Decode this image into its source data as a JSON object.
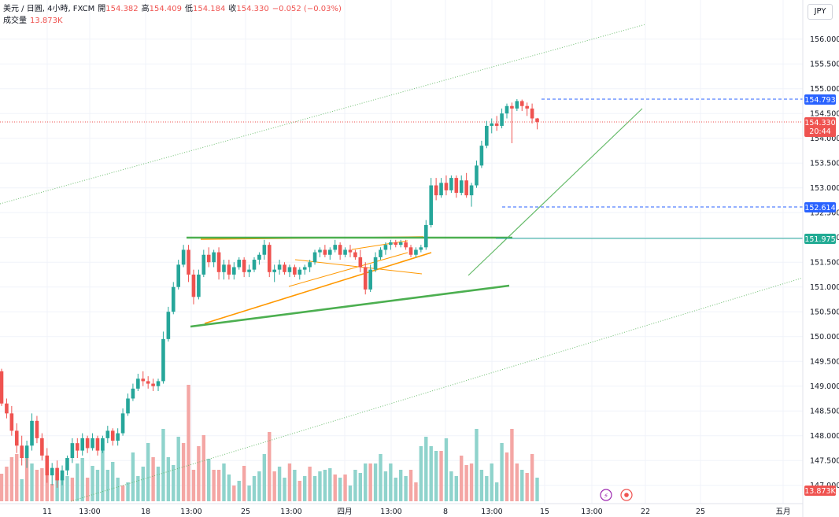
{
  "header": {
    "symbol": "美元 / 日圓, 4小時, FXCM",
    "open_label": "開",
    "open": "154.382",
    "high_label": "高",
    "high": "154.409",
    "low_label": "低",
    "low": "154.184",
    "close_label": "收",
    "close": "154.330",
    "change": "−0.052 (−0.03%)",
    "volume_label": "成交量",
    "volume": "13.873K"
  },
  "currency_button": "JPY",
  "colors": {
    "up": "#26a69a",
    "down": "#ef5350",
    "vol_up": "#8fd3cc",
    "vol_down": "#f4a6a4",
    "trend_green": "#4caf50",
    "triangle_orange": "#ff9800",
    "dash_blue": "#2962ff"
  },
  "chart_data": {
    "type": "candlestick",
    "price_axis": {
      "ticks": [
        "156.000",
        "155.500",
        "155.000",
        "154.500",
        "154.000",
        "153.500",
        "153.000",
        "152.500",
        "152.000",
        "151.500",
        "151.000",
        "150.500",
        "150.000",
        "149.500",
        "149.000",
        "148.500",
        "148.000",
        "147.500",
        "147.000"
      ],
      "range": [
        146.9,
        156.4
      ]
    },
    "time_axis": {
      "ticks": [
        "11",
        "13:00",
        "18",
        "13:00",
        "25",
        "13:00",
        "四月",
        "13:00",
        "8",
        "13:00",
        "15",
        "13:00",
        "22",
        "25",
        "五月"
      ]
    },
    "price_labels": {
      "high_line": "154.793",
      "last_price": "154.330",
      "countdown": "20:44",
      "low_line": "152.614",
      "horizontal_line": "151.975",
      "volume": "13.873K"
    },
    "candles": [
      [
        149.3,
        149.35,
        148.6,
        148.65
      ],
      [
        148.65,
        148.75,
        148.35,
        148.45
      ],
      [
        148.45,
        148.6,
        148.0,
        148.1
      ],
      [
        148.1,
        148.25,
        147.65,
        147.8
      ],
      [
        147.8,
        148.0,
        147.4,
        147.55
      ],
      [
        147.55,
        147.9,
        147.35,
        147.8
      ],
      [
        147.8,
        148.45,
        147.7,
        148.3
      ],
      [
        148.3,
        148.4,
        147.85,
        147.95
      ],
      [
        147.95,
        148.05,
        147.5,
        147.6
      ],
      [
        147.6,
        147.75,
        147.05,
        147.2
      ],
      [
        147.2,
        147.45,
        147.0,
        147.35
      ],
      [
        147.35,
        147.5,
        146.95,
        147.1
      ],
      [
        147.1,
        147.4,
        147.0,
        147.3
      ],
      [
        147.3,
        147.6,
        147.2,
        147.55
      ],
      [
        147.55,
        147.95,
        147.45,
        147.85
      ],
      [
        147.85,
        147.95,
        147.55,
        147.7
      ],
      [
        147.7,
        148.05,
        147.6,
        147.95
      ],
      [
        147.95,
        148.0,
        147.65,
        147.75
      ],
      [
        147.75,
        148.05,
        147.7,
        147.95
      ],
      [
        147.95,
        148.0,
        147.6,
        147.7
      ],
      [
        147.7,
        148.0,
        147.65,
        147.95
      ],
      [
        147.95,
        148.2,
        147.85,
        148.1
      ],
      [
        148.1,
        148.15,
        147.8,
        147.9
      ],
      [
        147.9,
        148.15,
        147.8,
        148.05
      ],
      [
        148.05,
        148.55,
        148.0,
        148.45
      ],
      [
        148.45,
        148.85,
        148.4,
        148.75
      ],
      [
        148.75,
        149.05,
        148.7,
        148.95
      ],
      [
        148.95,
        149.25,
        148.9,
        149.15
      ],
      [
        149.15,
        149.3,
        149.0,
        149.1
      ],
      [
        149.1,
        149.2,
        148.95,
        149.05
      ],
      [
        149.05,
        149.15,
        148.9,
        149.0
      ],
      [
        149.0,
        149.15,
        148.9,
        149.1
      ],
      [
        149.1,
        150.1,
        149.05,
        149.95
      ],
      [
        149.95,
        150.6,
        149.9,
        150.5
      ],
      [
        150.5,
        151.1,
        150.45,
        151.0
      ],
      [
        151.0,
        151.55,
        150.95,
        151.45
      ],
      [
        151.45,
        151.85,
        151.4,
        151.75
      ],
      [
        151.75,
        151.85,
        151.1,
        151.25
      ],
      [
        151.25,
        151.35,
        150.65,
        150.8
      ],
      [
        150.8,
        151.35,
        150.75,
        151.25
      ],
      [
        151.25,
        151.75,
        151.2,
        151.65
      ],
      [
        151.65,
        151.8,
        151.4,
        151.5
      ],
      [
        151.5,
        151.75,
        151.4,
        151.7
      ],
      [
        151.7,
        151.8,
        151.15,
        151.3
      ],
      [
        151.3,
        151.55,
        151.15,
        151.45
      ],
      [
        151.45,
        151.55,
        151.15,
        151.25
      ],
      [
        151.25,
        151.5,
        151.15,
        151.4
      ],
      [
        151.4,
        151.6,
        151.35,
        151.55
      ],
      [
        151.55,
        151.6,
        151.2,
        151.3
      ],
      [
        151.3,
        151.45,
        151.2,
        151.35
      ],
      [
        151.35,
        151.6,
        151.3,
        151.55
      ],
      [
        151.55,
        151.7,
        151.45,
        151.65
      ],
      [
        151.65,
        151.95,
        151.55,
        151.85
      ],
      [
        151.85,
        151.9,
        151.2,
        151.3
      ],
      [
        151.3,
        151.45,
        151.1,
        151.35
      ],
      [
        151.35,
        151.55,
        151.25,
        151.45
      ],
      [
        151.45,
        151.5,
        151.25,
        151.3
      ],
      [
        151.3,
        151.45,
        151.2,
        151.4
      ],
      [
        151.4,
        151.45,
        151.2,
        151.25
      ],
      [
        151.25,
        151.4,
        151.15,
        151.35
      ],
      [
        151.35,
        151.45,
        151.25,
        151.4
      ],
      [
        151.4,
        151.55,
        151.3,
        151.5
      ],
      [
        151.5,
        151.75,
        151.45,
        151.7
      ],
      [
        151.7,
        151.8,
        151.6,
        151.75
      ],
      [
        151.75,
        151.85,
        151.6,
        151.65
      ],
      [
        151.65,
        151.8,
        151.55,
        151.75
      ],
      [
        151.75,
        151.95,
        151.7,
        151.85
      ],
      [
        151.85,
        151.9,
        151.55,
        151.65
      ],
      [
        151.65,
        151.8,
        151.6,
        151.75
      ],
      [
        151.75,
        151.85,
        151.6,
        151.7
      ],
      [
        151.7,
        151.75,
        151.55,
        151.6
      ],
      [
        151.6,
        151.75,
        151.3,
        151.4
      ],
      [
        151.4,
        151.5,
        150.85,
        150.95
      ],
      [
        150.95,
        151.45,
        150.9,
        151.35
      ],
      [
        151.35,
        151.7,
        151.3,
        151.6
      ],
      [
        151.6,
        151.8,
        151.55,
        151.75
      ],
      [
        151.75,
        151.9,
        151.65,
        151.85
      ],
      [
        151.85,
        151.95,
        151.75,
        151.9
      ],
      [
        151.9,
        151.95,
        151.8,
        151.85
      ],
      [
        151.85,
        151.95,
        151.8,
        151.9
      ],
      [
        151.9,
        151.95,
        151.75,
        151.8
      ],
      [
        151.8,
        151.85,
        151.6,
        151.65
      ],
      [
        151.65,
        151.8,
        151.6,
        151.75
      ],
      [
        151.75,
        151.85,
        151.7,
        151.8
      ],
      [
        151.8,
        152.35,
        151.75,
        152.25
      ],
      [
        152.25,
        153.2,
        152.2,
        153.05
      ],
      [
        153.05,
        153.2,
        152.75,
        152.85
      ],
      [
        152.85,
        153.2,
        152.8,
        153.1
      ],
      [
        153.1,
        153.25,
        152.85,
        152.95
      ],
      [
        152.95,
        153.25,
        152.9,
        153.2
      ],
      [
        153.2,
        153.25,
        152.8,
        152.9
      ],
      [
        152.9,
        153.25,
        152.85,
        153.15
      ],
      [
        153.15,
        153.3,
        152.8,
        152.85
      ],
      [
        152.85,
        153.1,
        152.62,
        153.05
      ],
      [
        153.05,
        153.55,
        153.0,
        153.45
      ],
      [
        153.45,
        153.95,
        153.4,
        153.85
      ],
      [
        153.85,
        154.35,
        153.8,
        154.25
      ],
      [
        154.25,
        154.4,
        154.1,
        154.3
      ],
      [
        154.3,
        154.45,
        154.15,
        154.25
      ],
      [
        154.25,
        154.6,
        154.2,
        154.5
      ],
      [
        154.5,
        154.7,
        154.4,
        154.65
      ],
      [
        154.65,
        154.72,
        153.9,
        154.6
      ],
      [
        154.6,
        154.79,
        154.55,
        154.75
      ],
      [
        154.75,
        154.78,
        154.55,
        154.65
      ],
      [
        154.65,
        154.72,
        154.45,
        154.6
      ],
      [
        154.6,
        154.7,
        154.3,
        154.4
      ],
      [
        154.4,
        154.41,
        154.18,
        154.33
      ]
    ],
    "volume": [
      [
        35,
        0
      ],
      [
        44,
        0
      ],
      [
        56,
        0
      ],
      [
        60,
        0
      ],
      [
        28,
        1
      ],
      [
        68,
        0
      ],
      [
        48,
        1
      ],
      [
        40,
        0
      ],
      [
        42,
        0
      ],
      [
        56,
        0
      ],
      [
        22,
        0
      ],
      [
        36,
        1
      ],
      [
        32,
        1
      ],
      [
        32,
        1
      ],
      [
        30,
        0
      ],
      [
        48,
        1
      ],
      [
        55,
        1
      ],
      [
        30,
        0
      ],
      [
        45,
        1
      ],
      [
        40,
        1
      ],
      [
        72,
        1
      ],
      [
        40,
        1
      ],
      [
        50,
        1
      ],
      [
        30,
        1
      ],
      [
        20,
        0
      ],
      [
        24,
        1
      ],
      [
        62,
        1
      ],
      [
        32,
        1
      ],
      [
        44,
        1
      ],
      [
        74,
        1
      ],
      [
        56,
        0
      ],
      [
        44,
        1
      ],
      [
        92,
        1
      ],
      [
        56,
        1
      ],
      [
        46,
        1
      ],
      [
        82,
        1
      ],
      [
        74,
        0
      ],
      [
        148,
        0
      ],
      [
        40,
        0
      ],
      [
        70,
        0
      ],
      [
        84,
        0
      ],
      [
        54,
        1
      ],
      [
        40,
        0
      ],
      [
        40,
        0
      ],
      [
        48,
        1
      ],
      [
        34,
        1
      ],
      [
        20,
        0
      ],
      [
        26,
        1
      ],
      [
        45,
        0
      ],
      [
        20,
        1
      ],
      [
        32,
        1
      ],
      [
        38,
        1
      ],
      [
        60,
        1
      ],
      [
        88,
        0
      ],
      [
        38,
        0
      ],
      [
        44,
        1
      ],
      [
        30,
        1
      ],
      [
        48,
        0
      ],
      [
        40,
        1
      ],
      [
        26,
        0
      ],
      [
        32,
        1
      ],
      [
        44,
        0
      ],
      [
        32,
        1
      ],
      [
        38,
        1
      ],
      [
        40,
        1
      ],
      [
        42,
        1
      ],
      [
        34,
        0
      ],
      [
        30,
        1
      ],
      [
        34,
        0
      ],
      [
        20,
        1
      ],
      [
        40,
        1
      ],
      [
        36,
        1
      ],
      [
        48,
        1
      ],
      [
        48,
        0
      ],
      [
        48,
        1
      ],
      [
        60,
        1
      ],
      [
        38,
        1
      ],
      [
        48,
        1
      ],
      [
        30,
        1
      ],
      [
        40,
        1
      ],
      [
        32,
        1
      ],
      [
        40,
        0
      ],
      [
        24,
        0
      ],
      [
        70,
        1
      ],
      [
        82,
        1
      ],
      [
        70,
        1
      ],
      [
        64,
        1
      ],
      [
        64,
        0
      ],
      [
        80,
        1
      ],
      [
        38,
        1
      ],
      [
        32,
        1
      ],
      [
        58,
        0
      ],
      [
        46,
        0
      ],
      [
        48,
        0
      ],
      [
        92,
        1
      ],
      [
        40,
        1
      ],
      [
        32,
        1
      ],
      [
        48,
        1
      ],
      [
        24,
        1
      ],
      [
        74,
        1
      ],
      [
        62,
        0
      ],
      [
        92,
        0
      ],
      [
        48,
        0
      ],
      [
        40,
        1
      ],
      [
        36,
        0
      ],
      [
        60,
        0
      ],
      [
        30,
        1
      ]
    ],
    "overlays": {
      "upper_channel_line": "dotted green rising",
      "lower_channel_line": "dotted green rising",
      "resistance_line": "solid green",
      "rising_support_line": "solid green",
      "triangle": "orange",
      "recent_trendline": "green rising"
    }
  }
}
